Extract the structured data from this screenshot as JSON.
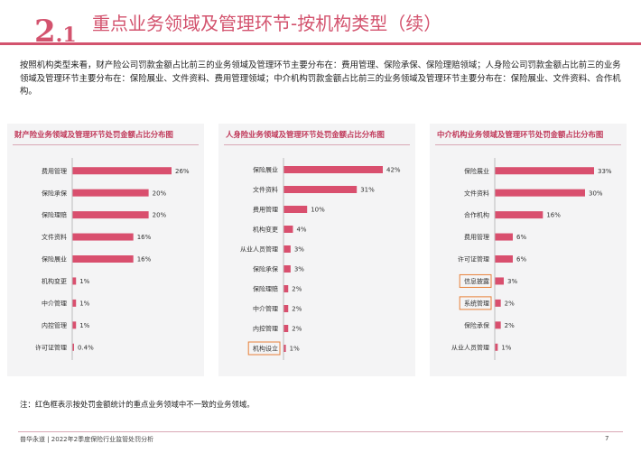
{
  "header": {
    "section_number": "2",
    "section_sub": ".1",
    "title": "重点业务领域及管理环节-按机构类型（续）"
  },
  "intro": "按照机构类型来看，财产险公司罚款金额占比前三的业务领域及管理环节主要分布在：费用管理、保险承保、保险理赔领域；人身险公司罚款金额占比前三的业务领域及管理环节主要分布在：保险展业、文件资料、费用管理领域；中介机构罚款金额占比前三的业务领域及管理环节主要分布在：保险展业、文件资料、合作机构。",
  "colors": {
    "accent": "#d3536e",
    "bar": "#d94f6e",
    "highlight_box": "#e8813a",
    "panel_bg": "#f4f4f5"
  },
  "chart_data": [
    {
      "type": "bar",
      "orientation": "horizontal",
      "title": "财产险业务领域及管理环节处罚金额占比分布图",
      "categories": [
        "费用管理",
        "保险承保",
        "保险理赔",
        "文件资料",
        "保险展业",
        "机构变更",
        "中介管理",
        "内控管理",
        "许可证管理"
      ],
      "values": [
        26,
        20,
        20,
        16,
        16,
        1,
        1,
        1,
        0.4
      ],
      "value_labels": [
        "26%",
        "20%",
        "20%",
        "16%",
        "16%",
        "1%",
        "1%",
        "1%",
        "0.4%"
      ],
      "highlighted": [],
      "xlim": [
        0,
        26
      ]
    },
    {
      "type": "bar",
      "orientation": "horizontal",
      "title": "人身险业务领域及管理环节处罚金额占比分布图",
      "categories": [
        "保险展业",
        "文件资料",
        "费用管理",
        "机构变更",
        "从业人员管理",
        "保险承保",
        "保险理赔",
        "中介管理",
        "内控管理",
        "机构设立"
      ],
      "values": [
        42,
        31,
        10,
        4,
        3,
        3,
        2,
        2,
        2,
        1
      ],
      "value_labels": [
        "42%",
        "31%",
        "10%",
        "4%",
        "3%",
        "3%",
        "2%",
        "2%",
        "2%",
        "1%"
      ],
      "highlighted": [
        "机构设立"
      ],
      "xlim": [
        0,
        42
      ]
    },
    {
      "type": "bar",
      "orientation": "horizontal",
      "title": "中介机构业务领域及管理环节处罚金额占比分布图",
      "categories": [
        "保险展业",
        "文件资料",
        "合作机构",
        "费用管理",
        "许可证管理",
        "信息披露",
        "系统管理",
        "保险承保",
        "从业人员管理"
      ],
      "values": [
        33,
        30,
        16,
        6,
        6,
        3,
        2,
        2,
        1
      ],
      "value_labels": [
        "33%",
        "30%",
        "16%",
        "6%",
        "6%",
        "3%",
        "2%",
        "2%",
        "1%"
      ],
      "highlighted": [
        "信息披露",
        "系统管理"
      ],
      "xlim": [
        0,
        33
      ]
    }
  ],
  "note": "注：红色框表示按处罚金额统计的重点业务领域中不一致的业务领域。",
  "footer": {
    "left": "普华永道 | 2022年2季度保险行业监管处罚分析",
    "page": "7"
  }
}
